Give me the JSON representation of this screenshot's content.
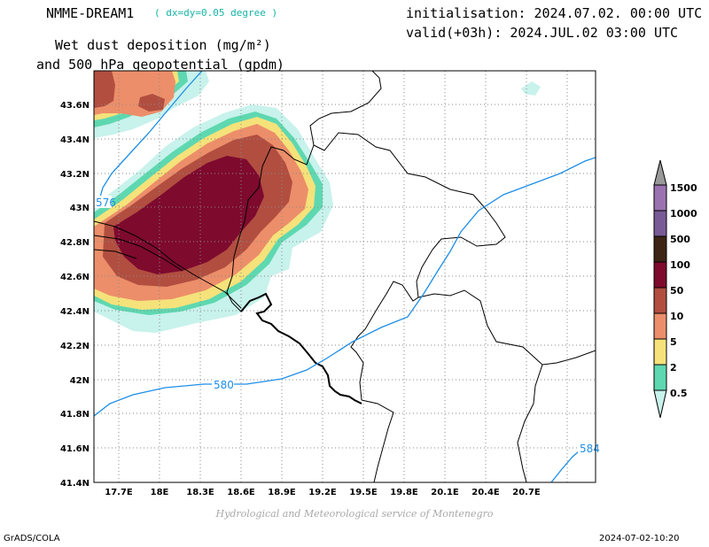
{
  "header": {
    "model": "NMME-DREAM1",
    "resolution": "( dx=dy=0.05 degree )",
    "initialisation": "initialisation: 2024.07.02. 00:00 UTC",
    "valid": "valid(+03h): 2024.JUL.02 03:00 UTC",
    "title_line1": "Wet dust deposition (mg/m²)",
    "title_line2": "and 500 hPa geopotential (gpdm)"
  },
  "axes": {
    "lat_labels": [
      "43.6N",
      "43.4N",
      "43.2N",
      "43N",
      "42.8N",
      "42.6N",
      "42.4N",
      "42.2N",
      "42N",
      "41.8N",
      "41.6N",
      "41.4N"
    ],
    "lon_labels": [
      "17.7E",
      "18E",
      "18.3E",
      "18.6E",
      "18.9E",
      "19.2E",
      "19.5E",
      "19.8E",
      "20.1E",
      "20.4E",
      "20.7E"
    ]
  },
  "contours": [
    {
      "label": "576",
      "color": "#1e8ee6"
    },
    {
      "label": "580",
      "color": "#1e8ee6"
    },
    {
      "label": "584",
      "color": "#1e8ee6"
    }
  ],
  "colorbar": {
    "levels": [
      {
        "label": "1500",
        "color": "#9a72b0"
      },
      {
        "label": "1000",
        "color": "#7a5a96"
      },
      {
        "label": "500",
        "color": "#3d2516"
      },
      {
        "label": "100",
        "color": "#7e0a2e"
      },
      {
        "label": "50",
        "color": "#b14e40"
      },
      {
        "label": "10",
        "color": "#ec8e6a"
      },
      {
        "label": "5",
        "color": "#f5e27a"
      },
      {
        "label": "2",
        "color": "#5ed8b0"
      },
      {
        "label": "0.5",
        "color": "#c8f2ec"
      }
    ],
    "top_arrow_color": "#999999"
  },
  "footer": {
    "credit": "Hydrological and Meteorological service of Montenegro",
    "software": "GrADS/COLA",
    "timestamp": "2024-07-02-10:20"
  }
}
